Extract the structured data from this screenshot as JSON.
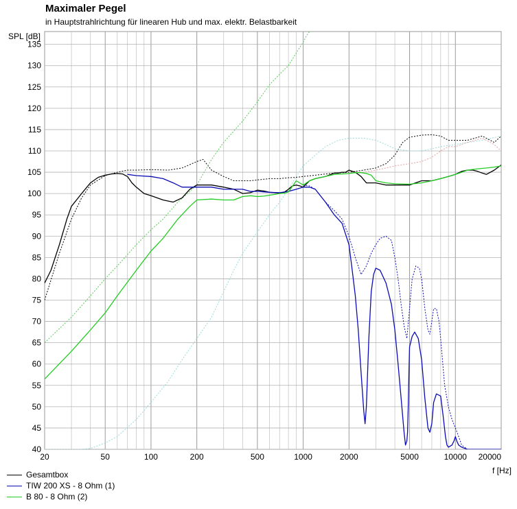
{
  "chart_data": {
    "type": "line",
    "title": "Maximaler Pegel",
    "subtitle": "in Hauptstrahlrichtung für linearen Hub und max. elektr. Belastbarkeit",
    "ylabel": "SPL [dB]",
    "xlabel": "f [Hz]",
    "xscale": "log",
    "xlim": [
      20,
      20000
    ],
    "ylim": [
      40,
      138
    ],
    "grid": true,
    "x_tick_labels": [
      "20",
      "50",
      "100",
      "200",
      "500",
      "1000",
      "2000",
      "5000",
      "10000",
      "20000"
    ],
    "x_ticks": [
      20,
      50,
      100,
      200,
      500,
      1000,
      2000,
      5000,
      10000,
      20000
    ],
    "y_ticks": [
      40,
      45,
      50,
      55,
      60,
      65,
      70,
      75,
      80,
      85,
      90,
      95,
      100,
      105,
      110,
      115,
      120,
      125,
      130,
      135
    ],
    "legend_placement": "bottom-left",
    "series": [
      {
        "name": "Gesamtbox",
        "color": "#000000",
        "style": "solid",
        "x": [
          20,
          22,
          25,
          28,
          30,
          35,
          40,
          45,
          50,
          55,
          60,
          65,
          70,
          75,
          80,
          90,
          100,
          120,
          140,
          160,
          180,
          200,
          250,
          300,
          350,
          400,
          450,
          500,
          550,
          600,
          650,
          700,
          750,
          800,
          850,
          900,
          950,
          1000,
          1100,
          1200,
          1400,
          1600,
          1700,
          1800,
          1900,
          2000,
          2200,
          2400,
          2600,
          2800,
          3000,
          3500,
          4000,
          5000,
          6000,
          7000,
          8000,
          9000,
          10000,
          11000,
          12000,
          13000,
          14000,
          15000,
          16000,
          18000,
          20000
        ],
        "y": [
          79,
          82,
          88,
          94,
          97,
          100,
          102.5,
          103.8,
          104.3,
          104.6,
          104.7,
          104.6,
          104,
          102.5,
          101.5,
          100,
          99.5,
          98.5,
          98,
          99,
          101,
          102,
          102,
          101.5,
          101,
          100,
          100.2,
          100.8,
          100.6,
          100.3,
          100.2,
          100.1,
          100.3,
          101,
          101.8,
          102,
          101.8,
          101.5,
          103,
          103.5,
          104,
          104.8,
          104.8,
          105,
          105,
          105.5,
          105,
          104,
          102.5,
          102.5,
          102.5,
          102,
          102,
          102,
          103,
          103,
          103.5,
          104,
          104.5,
          105.2,
          105.5,
          105.5,
          105.2,
          104.8,
          104.5,
          105.5,
          106.7
        ]
      },
      {
        "name": "TIW 200 XS - 8 Ohm (1)",
        "color": "#0a0ab4",
        "style": "solid",
        "x": [
          70,
          80,
          100,
          120,
          140,
          160,
          180,
          200,
          250,
          300,
          350,
          400,
          450,
          500,
          600,
          700,
          800,
          900,
          1000,
          1100,
          1200,
          1400,
          1600,
          1800,
          2000,
          2100,
          2200,
          2300,
          2400,
          2500,
          2550,
          2600,
          2650,
          2700,
          2800,
          2900,
          3000,
          3200,
          3500,
          3800,
          4000,
          4200,
          4400,
          4600,
          4700,
          4800,
          4850,
          4900,
          4950,
          5000,
          5200,
          5400,
          5700,
          6000,
          6300,
          6600,
          6800,
          7000,
          7200,
          7500,
          8000,
          8300,
          8600,
          8800,
          9000,
          9500,
          9800,
          10000,
          10200,
          10500,
          11000,
          12000,
          14000,
          20000
        ],
        "y": [
          104.5,
          104.2,
          104,
          103.5,
          102.5,
          101.5,
          101.5,
          101.5,
          101.5,
          101,
          101,
          101,
          100.5,
          100.5,
          100.3,
          100.2,
          100.5,
          101,
          101.5,
          101.5,
          101,
          98,
          95,
          93,
          88,
          82,
          76,
          68,
          58,
          49,
          46,
          50,
          58,
          66,
          77,
          81,
          82.5,
          82,
          79,
          74,
          68,
          60,
          52,
          44,
          41,
          42,
          44,
          50,
          58,
          64,
          66.5,
          67.5,
          66,
          61,
          52,
          45,
          44,
          46,
          51,
          53,
          52.5,
          48,
          43,
          41,
          40.5,
          41,
          42,
          43,
          42,
          41,
          40.5,
          40,
          40,
          40
        ]
      },
      {
        "name": "B 80 - 8 Ohm (2)",
        "color": "#22cc22",
        "style": "solid",
        "x": [
          20,
          30,
          40,
          50,
          60,
          80,
          100,
          120,
          150,
          180,
          200,
          250,
          300,
          350,
          400,
          450,
          500,
          550,
          600,
          650,
          700,
          750,
          800,
          900,
          1000,
          1100,
          1200,
          1400,
          1600,
          1800,
          2000,
          2200,
          2400,
          2600,
          2800,
          3000,
          3500,
          4000,
          5000,
          6000,
          7000,
          8000,
          9000,
          10000,
          11000,
          12000,
          14000,
          16000,
          18000,
          20000
        ],
        "y": [
          56.5,
          63,
          68,
          72,
          76,
          82,
          86.5,
          89.5,
          94,
          97,
          98.5,
          98.7,
          98.5,
          98.5,
          99.3,
          99.5,
          99.3,
          99.4,
          99.6,
          99.8,
          100,
          100.1,
          100.4,
          103,
          102,
          103,
          103.5,
          104,
          104.5,
          104.6,
          104.7,
          104.9,
          104.9,
          104.7,
          104.3,
          103,
          102.5,
          102.3,
          102.2,
          102.5,
          103,
          103.5,
          104,
          104.5,
          105,
          105.5,
          105.8,
          106,
          106.2,
          106.5
        ]
      },
      {
        "name": "",
        "color": "#000000",
        "style": "dotted",
        "x": [
          20,
          25,
          30,
          35,
          40,
          50,
          60,
          70,
          80,
          100,
          130,
          160,
          200,
          220,
          250,
          300,
          350,
          400,
          450,
          500,
          600,
          700,
          800,
          900,
          1000,
          1200,
          1500,
          2000,
          2500,
          3000,
          3500,
          4000,
          4500,
          5000,
          6000,
          7000,
          8000,
          9000,
          10000,
          12000,
          15000,
          18000,
          20000
        ],
        "y": [
          75,
          86,
          94,
          99,
          102,
          104.2,
          105,
          105.5,
          105.5,
          105.6,
          105.5,
          106,
          107.5,
          108,
          105.5,
          104,
          103,
          103,
          103,
          103.2,
          103.5,
          103.5,
          103.7,
          103.8,
          104,
          104.3,
          104.7,
          105,
          105.5,
          106,
          107,
          109,
          112,
          113.2,
          113.7,
          113.8,
          113.5,
          112.5,
          112.5,
          112.5,
          113.5,
          112,
          113.5
        ]
      },
      {
        "name": "",
        "color": "#0a0ab4",
        "style": "dotted",
        "x": [
          1000,
          1100,
          1200,
          1400,
          1600,
          1800,
          2000,
          2200,
          2400,
          2600,
          2800,
          3000,
          3200,
          3500,
          3800,
          4000,
          4200,
          4400,
          4600,
          4800,
          5000,
          5200,
          5500,
          5800,
          6000,
          6300,
          6600,
          6800,
          7000,
          7200,
          7500,
          7800,
          8000,
          8500,
          9000,
          9500,
          10000,
          10500,
          11000,
          12000
        ],
        "y": [
          102,
          101.8,
          101,
          98,
          96,
          94,
          90,
          85,
          81,
          83,
          86,
          88,
          89.5,
          90,
          89,
          85,
          80,
          74,
          69,
          66,
          73,
          80,
          83,
          82.5,
          80,
          73,
          68,
          67,
          70,
          73,
          73,
          70,
          66,
          55,
          50,
          47,
          45,
          43,
          41,
          40
        ]
      },
      {
        "name": "",
        "color": "#55cc55",
        "style": "dotted",
        "x": [
          20,
          30,
          40,
          50,
          60,
          80,
          100,
          120,
          150,
          180,
          200,
          250,
          300,
          400,
          500,
          600,
          700,
          800,
          900,
          1000,
          1050,
          1100
        ],
        "y": [
          65,
          71,
          76,
          80,
          83,
          88,
          91.5,
          94,
          98,
          100.5,
          102,
          108,
          112,
          117,
          121.5,
          125.5,
          128,
          130,
          133,
          135.5,
          137,
          138
        ]
      },
      {
        "name": "",
        "color": "#9adada",
        "style": "dotted",
        "x": [
          20,
          25,
          30,
          35,
          40,
          50,
          60,
          80,
          100,
          130,
          160,
          200,
          250,
          300,
          350,
          400,
          500,
          600,
          700,
          800,
          900,
          1000,
          1200,
          1400,
          1700,
          2000,
          2500,
          3000,
          3500,
          4000,
          5000,
          6000,
          7000,
          8000,
          10000,
          12000,
          15000,
          20000
        ],
        "y": [
          40,
          40,
          40,
          40,
          40.2,
          41.5,
          43,
          47,
          51,
          56,
          61,
          66,
          71,
          77,
          82,
          86,
          91,
          95,
          98,
          101,
          104,
          106.5,
          109,
          111,
          112.5,
          113,
          113,
          112.5,
          111.5,
          110.5,
          110,
          110,
          110.5,
          111,
          111.5,
          112,
          112.5,
          113.5
        ]
      },
      {
        "name": "",
        "color": "#e6a0a0",
        "style": "dotted",
        "x": [
          2000,
          2500,
          3000,
          3500,
          4000,
          5000,
          6000,
          7000,
          8000,
          9000,
          10000,
          12000,
          15000,
          18000,
          20000
        ],
        "y": [
          105,
          105,
          105.5,
          106,
          106.5,
          107,
          107.5,
          108.5,
          110,
          111,
          111,
          112,
          113,
          111.5,
          110
        ]
      }
    ]
  }
}
